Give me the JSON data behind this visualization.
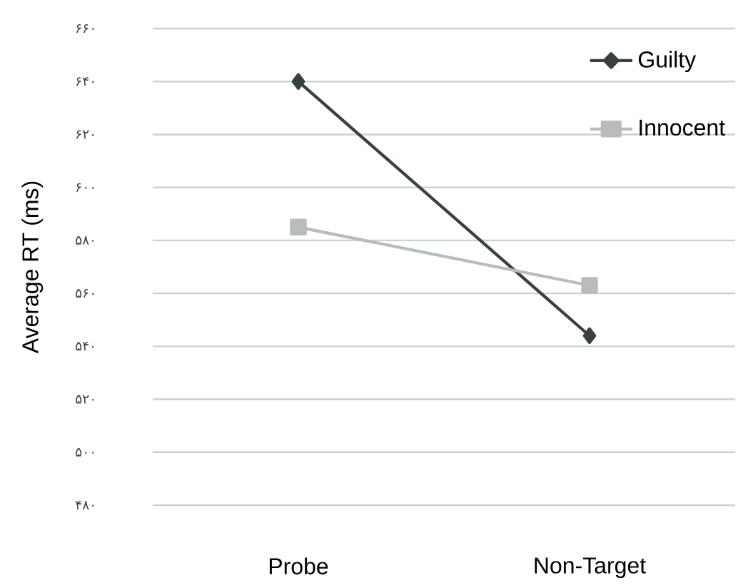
{
  "chart_data": {
    "type": "line",
    "ylabel": "Average RT (ms)",
    "categories": [
      "Probe",
      "Non-Target"
    ],
    "series": [
      {
        "name": "Guilty",
        "color": "#3a3f42",
        "marker": "diamond",
        "values": [
          640,
          544
        ]
      },
      {
        "name": "Innocent",
        "color": "#b8bcbc",
        "marker": "square",
        "values": [
          585,
          563
        ]
      }
    ],
    "ylim": [
      480,
      660
    ],
    "yticks": [
      {
        "value": 480,
        "label": "۴۸۰"
      },
      {
        "value": 500,
        "label": "۵۰۰"
      },
      {
        "value": 520,
        "label": "۵۲۰"
      },
      {
        "value": 540,
        "label": "۵۴۰"
      },
      {
        "value": 560,
        "label": "۵۶۰"
      },
      {
        "value": 580,
        "label": "۵۸۰"
      },
      {
        "value": 600,
        "label": "۶۰۰"
      },
      {
        "value": 620,
        "label": "۶۲۰"
      },
      {
        "value": 640,
        "label": "۶۴۰"
      },
      {
        "value": 660,
        "label": "۶۶۰"
      }
    ],
    "grid": "y",
    "legend": "top right"
  }
}
